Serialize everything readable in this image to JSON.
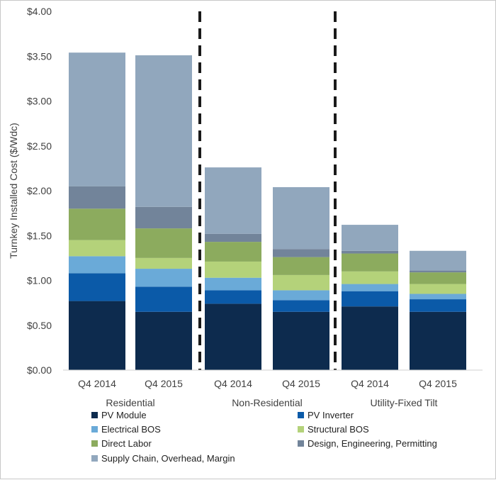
{
  "chart_data": {
    "type": "bar",
    "stacked": true,
    "ylabel": "Turnkey Installed Cost ($/Wdc)",
    "ylim": [
      0,
      4.0
    ],
    "yticks": [
      "$0.00",
      "$0.50",
      "$1.00",
      "$1.50",
      "$2.00",
      "$2.50",
      "$3.00",
      "$3.50",
      "$4.00"
    ],
    "grid": false,
    "legend_position": "bottom",
    "groups": [
      {
        "name": "Residential",
        "categories": [
          "Q4 2014",
          "Q4 2015"
        ]
      },
      {
        "name": "Non-Residential",
        "categories": [
          "Q4 2014",
          "Q4 2015"
        ]
      },
      {
        "name": "Utility-Fixed Tilt",
        "categories": [
          "Q4 2014",
          "Q4 2015"
        ]
      }
    ],
    "categories": [
      "Q4 2014",
      "Q4 2015",
      "Q4 2014",
      "Q4 2015",
      "Q4 2014",
      "Q4 2015"
    ],
    "series": [
      {
        "name": "PV Module",
        "color": "#0d2b4e",
        "values": [
          0.77,
          0.65,
          0.74,
          0.65,
          0.71,
          0.65
        ]
      },
      {
        "name": "PV Inverter",
        "color": "#0b5aa8",
        "values": [
          0.31,
          0.28,
          0.15,
          0.13,
          0.17,
          0.14
        ]
      },
      {
        "name": "Electrical BOS",
        "color": "#6aaad8",
        "values": [
          0.19,
          0.2,
          0.14,
          0.11,
          0.08,
          0.06
        ]
      },
      {
        "name": "Structural BOS",
        "color": "#b4d27a",
        "values": [
          0.18,
          0.12,
          0.18,
          0.17,
          0.14,
          0.11
        ]
      },
      {
        "name": "Direct Labor",
        "color": "#8cab5e",
        "values": [
          0.35,
          0.33,
          0.22,
          0.2,
          0.2,
          0.13
        ]
      },
      {
        "name": "Design, Engineering, Permitting",
        "color": "#72849a",
        "values": [
          0.25,
          0.24,
          0.09,
          0.09,
          0.03,
          0.02
        ]
      },
      {
        "name": "Supply Chain, Overhead, Margin",
        "color": "#91a7bd",
        "values": [
          1.49,
          1.69,
          0.74,
          0.69,
          0.29,
          0.22
        ]
      }
    ]
  }
}
